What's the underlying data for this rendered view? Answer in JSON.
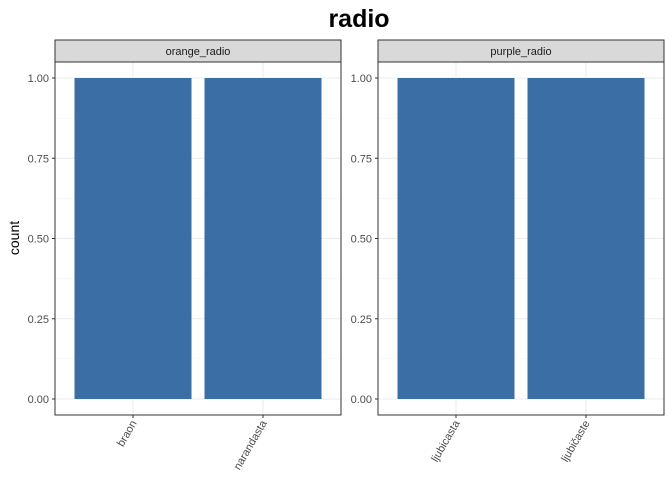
{
  "chart_data": {
    "type": "bar",
    "title": "radio",
    "ylabel": "count",
    "xlabel": "",
    "ylim": [
      0,
      1
    ],
    "yticks": [
      "0.00",
      "0.25",
      "0.50",
      "0.75",
      "1.00"
    ],
    "ytick_values": [
      0,
      0.25,
      0.5,
      0.75,
      1
    ],
    "grid": true,
    "bar_color": "#3a6ea5",
    "panels": [
      {
        "name": "orange_radio",
        "categories": [
          "braon",
          "narandasta"
        ],
        "values": [
          1,
          1
        ]
      },
      {
        "name": "purple_radio",
        "categories": [
          "ljubicasta",
          "ljubičaste"
        ],
        "values": [
          1,
          1
        ]
      }
    ]
  }
}
